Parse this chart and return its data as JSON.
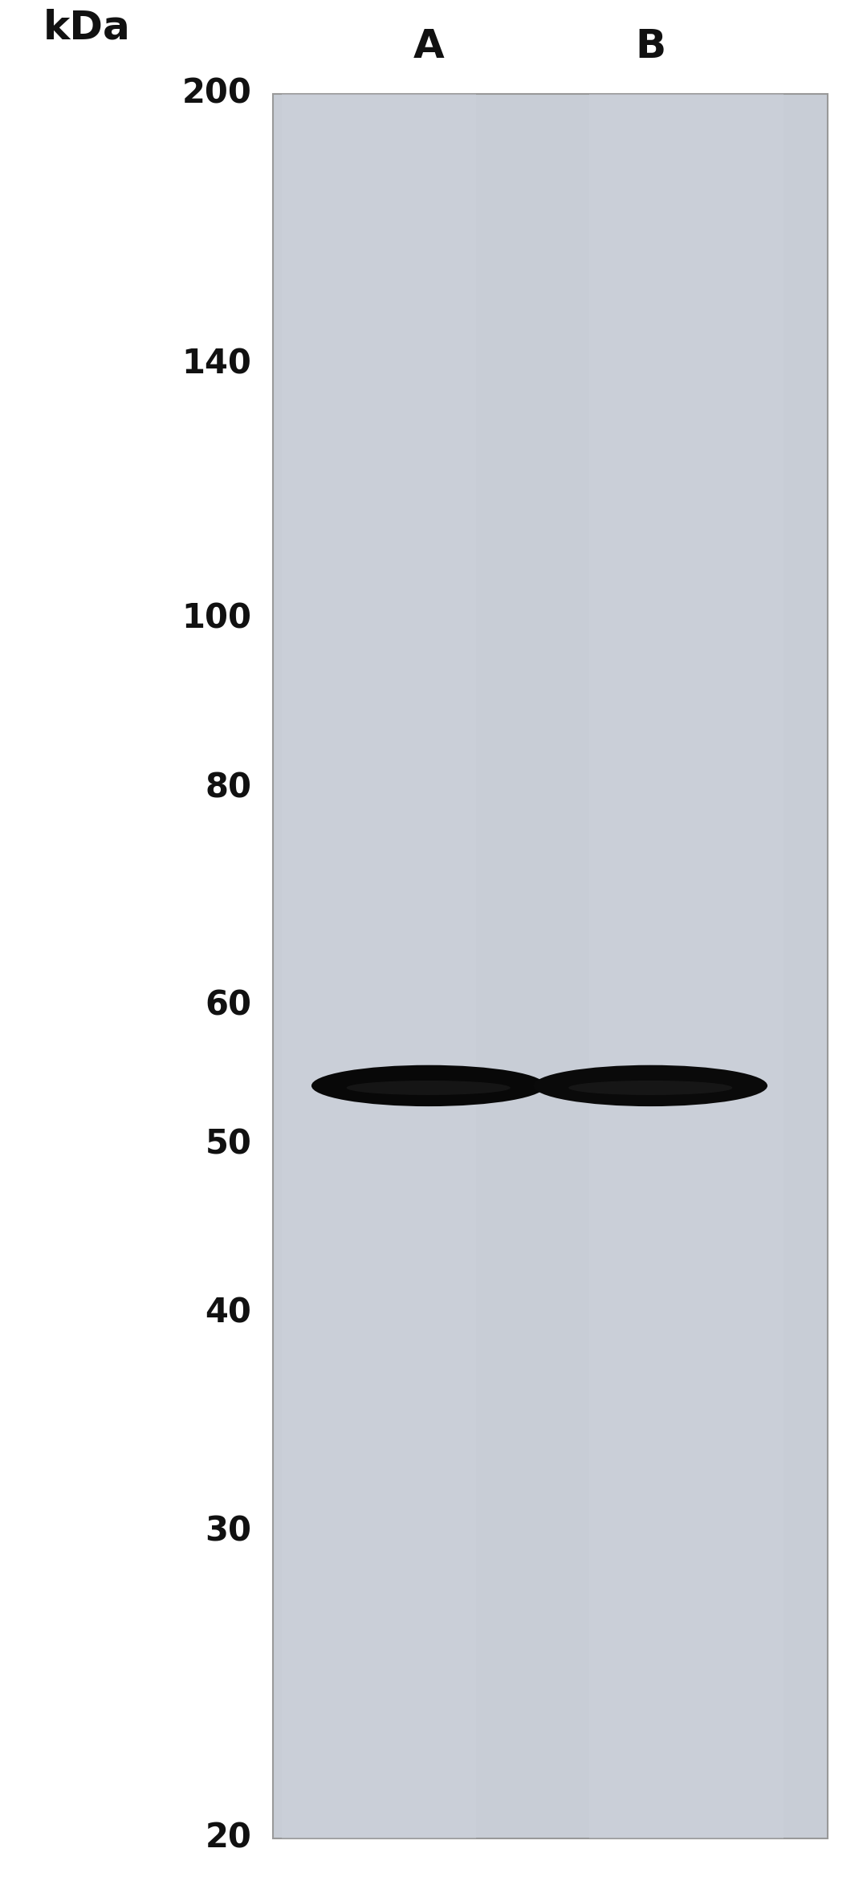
{
  "background_color": "#ffffff",
  "gel_background_color": "#c8cdd6",
  "gel_border_color": "#999999",
  "figure_width": 10.8,
  "figure_height": 23.48,
  "lane_labels": [
    "A",
    "B"
  ],
  "mw_markers": [
    200,
    140,
    100,
    80,
    60,
    50,
    40,
    30,
    20
  ],
  "band_color": "#0a0a0a",
  "kda_label": "kDa",
  "kda_fontsize": 36,
  "lane_label_fontsize": 36,
  "mw_fontsize": 30
}
